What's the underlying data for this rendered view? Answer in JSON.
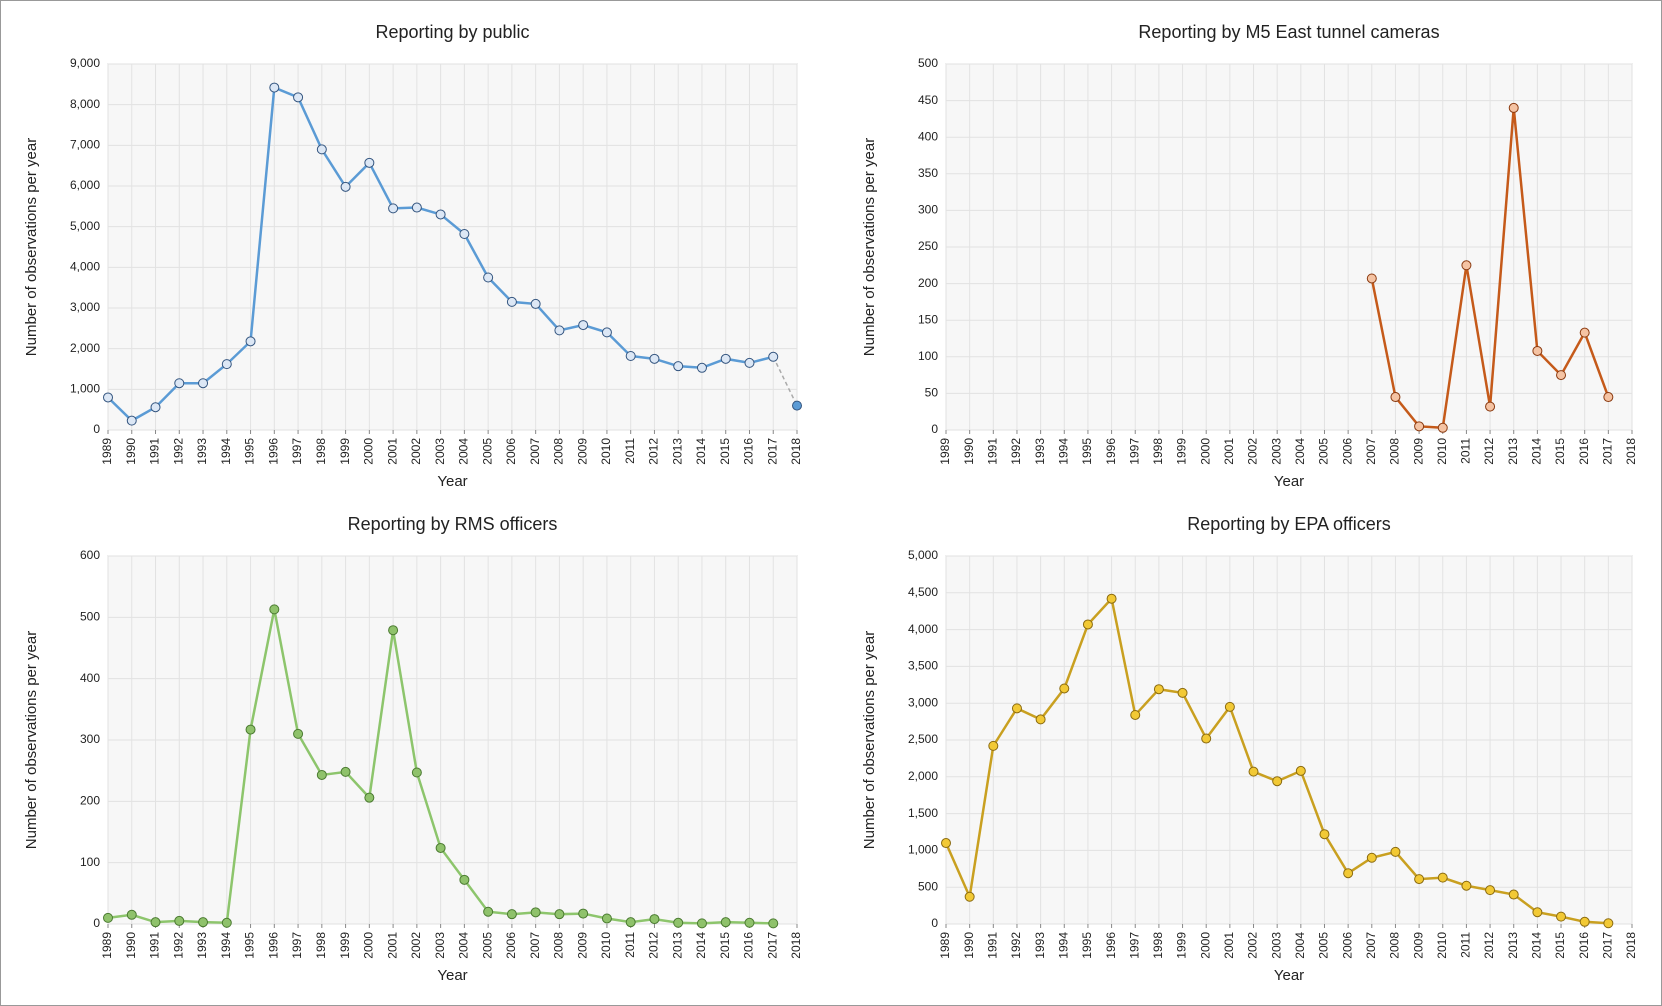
{
  "chart_data": [
    {
      "type": "line",
      "title": "Reporting by public",
      "x_label": "Year",
      "y_label": "Number of observations per year",
      "categories": [
        "1989",
        "1990",
        "1991",
        "1992",
        "1993",
        "1994",
        "1995",
        "1996",
        "1997",
        "1998",
        "1999",
        "2000",
        "2001",
        "2002",
        "2003",
        "2004",
        "2005",
        "2006",
        "2007",
        "2008",
        "2009",
        "2010",
        "2011",
        "2012",
        "2013",
        "2014",
        "2015",
        "2016",
        "2017",
        "2018"
      ],
      "values": [
        800,
        230,
        560,
        1150,
        1150,
        1620,
        2180,
        8420,
        8180,
        6900,
        5980,
        6570,
        5450,
        5470,
        5300,
        4820,
        3750,
        3150,
        3100,
        2450,
        2580,
        2400,
        1820,
        1750,
        1570,
        1530,
        1750,
        1650,
        1800,
        600
      ],
      "color": "#5b9bd5",
      "marker_fill": "#dce7f5",
      "marker_stroke": "#34557f",
      "last_segment_dashed": true,
      "dashed_color": "#aaaaaa",
      "last_marker_fill": "#5b9bd5",
      "ylim": [
        0,
        9000
      ],
      "yticks": [
        0,
        {
          "value": 1000,
          "label": "1,000"
        },
        {
          "value": 2000,
          "label": "2,000"
        },
        {
          "value": 3000,
          "label": "3,000"
        },
        {
          "value": 4000,
          "label": "4,000"
        },
        {
          "value": 5000,
          "label": "5,000"
        },
        {
          "value": 6000,
          "label": "6,000"
        },
        {
          "value": 7000,
          "label": "7,000"
        },
        {
          "value": 8000,
          "label": "8,000"
        },
        {
          "value": 9000,
          "label": "9,000"
        }
      ],
      "grid": true
    },
    {
      "type": "line",
      "title": "Reporting by M5 East tunnel cameras",
      "x_label": "Year",
      "y_label": "Number of observations per year",
      "categories": [
        "1989",
        "1990",
        "1991",
        "1992",
        "1993",
        "1994",
        "1995",
        "1996",
        "1997",
        "1998",
        "1999",
        "2000",
        "2001",
        "2002",
        "2003",
        "2004",
        "2005",
        "2006",
        "2007",
        "2008",
        "2009",
        "2010",
        "2011",
        "2012",
        "2013",
        "2014",
        "2015",
        "2016",
        "2017",
        "2018"
      ],
      "values": [
        null,
        null,
        null,
        null,
        null,
        null,
        null,
        null,
        null,
        null,
        null,
        null,
        null,
        null,
        null,
        null,
        null,
        null,
        207,
        45,
        5,
        3,
        225,
        32,
        440,
        108,
        75,
        133,
        45,
        null
      ],
      "color": "#c55a1a",
      "marker_fill": "#f5c3a3",
      "marker_stroke": "#8a3a10",
      "ylim": [
        0,
        500
      ],
      "yticks": [
        0,
        50,
        100,
        150,
        200,
        250,
        300,
        350,
        400,
        450,
        500
      ],
      "grid": true
    },
    {
      "type": "line",
      "title": "Reporting by RMS officers",
      "x_label": "Year",
      "y_label": "Number of observations per year",
      "categories": [
        "1989",
        "1990",
        "1991",
        "1992",
        "1993",
        "1994",
        "1995",
        "1996",
        "1997",
        "1998",
        "1999",
        "2000",
        "2001",
        "2002",
        "2003",
        "2004",
        "2005",
        "2006",
        "2007",
        "2008",
        "2009",
        "2010",
        "2011",
        "2012",
        "2013",
        "2014",
        "2015",
        "2016",
        "2017",
        "2018"
      ],
      "values": [
        10,
        15,
        3,
        5,
        3,
        2,
        317,
        513,
        310,
        243,
        248,
        206,
        479,
        247,
        124,
        72,
        20,
        16,
        19,
        16,
        17,
        9,
        3,
        8,
        2,
        1,
        3,
        2,
        1,
        null
      ],
      "color": "#8dc56c",
      "marker_fill": "#8fc26b",
      "marker_stroke": "#4a7a30",
      "ylim": [
        0,
        600
      ],
      "yticks": [
        0,
        100,
        200,
        300,
        400,
        500,
        600
      ],
      "grid": true
    },
    {
      "type": "line",
      "title": "Reporting by EPA officers",
      "x_label": "Year",
      "y_label": "Number of observations per year",
      "categories": [
        "1989",
        "1990",
        "1991",
        "1992",
        "1993",
        "1994",
        "1995",
        "1996",
        "1997",
        "1998",
        "1999",
        "2000",
        "2001",
        "2002",
        "2003",
        "2004",
        "2005",
        "2006",
        "2007",
        "2008",
        "2009",
        "2010",
        "2011",
        "2012",
        "2013",
        "2014",
        "2015",
        "2016",
        "2017",
        "2018"
      ],
      "values": [
        1100,
        370,
        2420,
        2930,
        2780,
        3200,
        4070,
        4420,
        2840,
        3190,
        3140,
        2520,
        2950,
        2070,
        1940,
        2080,
        1220,
        690,
        900,
        980,
        610,
        630,
        520,
        460,
        400,
        160,
        100,
        30,
        10,
        null
      ],
      "color": "#c9a020",
      "marker_fill": "#f2c935",
      "marker_stroke": "#8a6a10",
      "ylim": [
        0,
        5000
      ],
      "yticks": [
        0,
        500,
        {
          "value": 1000,
          "label": "1,000"
        },
        {
          "value": 1500,
          "label": "1,500"
        },
        {
          "value": 2000,
          "label": "2,000"
        },
        {
          "value": 2500,
          "label": "2,500"
        },
        {
          "value": 3000,
          "label": "3,000"
        },
        {
          "value": 3500,
          "label": "3,500"
        },
        {
          "value": 4000,
          "label": "4,000"
        },
        {
          "value": 4500,
          "label": "4,500"
        },
        {
          "value": 5000,
          "label": "5,000"
        }
      ],
      "grid": true
    }
  ]
}
